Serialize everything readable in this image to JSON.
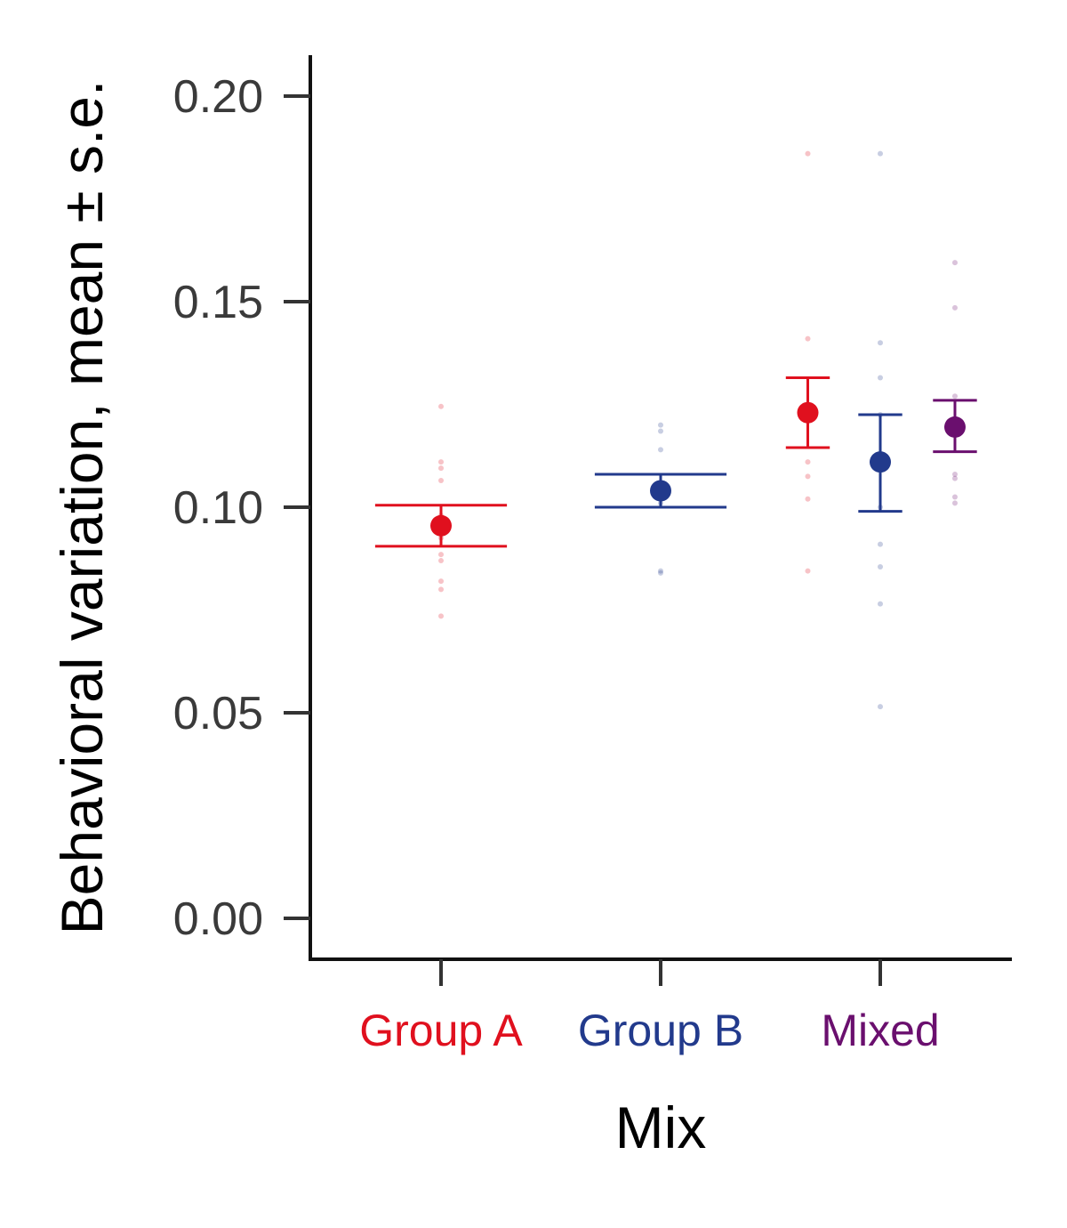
{
  "chart_data": {
    "type": "scatter",
    "xlabel": "Mix",
    "ylabel": "Behavioral variation, mean ± s.e.",
    "ylim": [
      -0.01,
      0.21
    ],
    "yticks": [
      "0.00",
      "0.05",
      "0.10",
      "0.15",
      "0.20"
    ],
    "ytick_values": [
      0.0,
      0.05,
      0.1,
      0.15,
      0.2
    ],
    "categories": [
      {
        "label": "Group A",
        "color": "#e0101e"
      },
      {
        "label": "Group B",
        "color": "#223a8c"
      },
      {
        "label": "Mixed",
        "color": "#6a0f6e"
      }
    ],
    "grid": false,
    "legend": "none",
    "summaries": [
      {
        "category": "Group A",
        "group": "Group A",
        "color": "#e0101e",
        "mean": 0.0955,
        "lower": 0.0905,
        "upper": 0.1005,
        "offset": 0,
        "cap_half": 0.3
      },
      {
        "category": "Group B",
        "group": "Group B",
        "color": "#223a8c",
        "mean": 0.104,
        "lower": 0.1,
        "upper": 0.108,
        "offset": 0,
        "cap_half": 0.3
      },
      {
        "category": "Mixed",
        "group": "Group A",
        "color": "#e0101e",
        "mean": 0.123,
        "lower": 0.1145,
        "upper": 0.1315,
        "offset": -0.33,
        "cap_half": 0.1
      },
      {
        "category": "Mixed",
        "group": "Group B",
        "color": "#223a8c",
        "mean": 0.111,
        "lower": 0.099,
        "upper": 0.1225,
        "offset": 0,
        "cap_half": 0.1
      },
      {
        "category": "Mixed",
        "group": "Mixed",
        "color": "#6a0f6e",
        "mean": 0.1195,
        "lower": 0.1135,
        "upper": 0.126,
        "offset": 0.34,
        "cap_half": 0.1
      }
    ],
    "raw_points": [
      {
        "category": "Group A",
        "group": "Group A",
        "color": "#e0101e",
        "offset": 0,
        "values": [
          0.1245,
          0.111,
          0.1095,
          0.1065,
          0.098,
          0.095,
          0.0925,
          0.0885,
          0.087,
          0.082,
          0.08,
          0.0735
        ]
      },
      {
        "category": "Group B",
        "group": "Group B",
        "color": "#223a8c",
        "offset": 0,
        "values": [
          0.12,
          0.1185,
          0.114,
          0.105,
          0.104,
          0.103,
          0.101,
          0.0845,
          0.084
        ]
      },
      {
        "category": "Mixed",
        "group": "Group A",
        "color": "#e0101e",
        "offset": -0.33,
        "values": [
          0.186,
          0.141,
          0.125,
          0.1225,
          0.111,
          0.1075,
          0.102,
          0.0845
        ]
      },
      {
        "category": "Mixed",
        "group": "Group B",
        "color": "#223a8c",
        "offset": 0,
        "values": [
          0.186,
          0.14,
          0.1315,
          0.1225,
          0.111,
          0.1,
          0.091,
          0.0855,
          0.0765,
          0.0515
        ]
      },
      {
        "category": "Mixed",
        "group": "Mixed",
        "color": "#6a0f6e",
        "offset": 0.34,
        "values": [
          0.1595,
          0.1485,
          0.127,
          0.1205,
          0.1175,
          0.108,
          0.107,
          0.1025,
          0.101
        ]
      }
    ]
  }
}
